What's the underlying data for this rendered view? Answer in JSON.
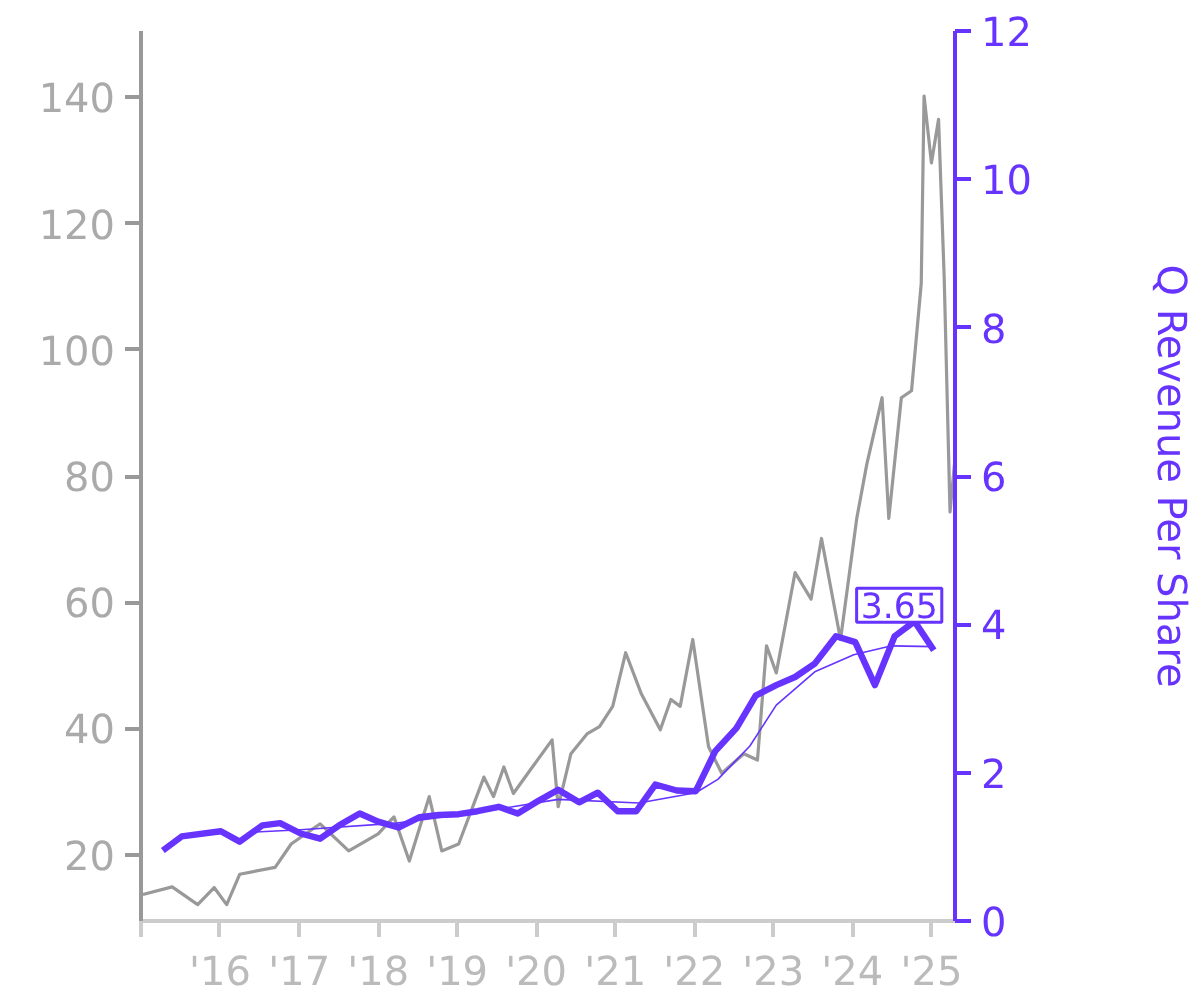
{
  "chart_data": {
    "type": "line",
    "y2label": "Q Revenue Per Share",
    "xlim": [
      "2015-01-01",
      "2025-04-20"
    ],
    "xticks": [
      {
        "value": "2015-01-01",
        "label": null
      },
      {
        "value": "2016-01-01",
        "label": "'16"
      },
      {
        "value": "2017-01-01",
        "label": "'17"
      },
      {
        "value": "2018-01-01",
        "label": "'18"
      },
      {
        "value": "2019-01-01",
        "label": "'19"
      },
      {
        "value": "2020-01-01",
        "label": "'20"
      },
      {
        "value": "2021-01-01",
        "label": "'21"
      },
      {
        "value": "2022-01-01",
        "label": "'22"
      },
      {
        "value": "2023-01-01",
        "label": "'23"
      },
      {
        "value": "2024-01-01",
        "label": "'24"
      },
      {
        "value": "2025-01-01",
        "label": "'25"
      }
    ],
    "ylim": [
      9.5,
      150.5
    ],
    "yticks": [
      20,
      40,
      60,
      80,
      100,
      120,
      140
    ],
    "y2lim": [
      0,
      12
    ],
    "y2ticks": [
      0,
      2,
      4,
      6,
      8,
      10,
      12
    ],
    "grid": false,
    "marker": "none",
    "line_style": "solid",
    "series": [
      {
        "color": "#999999",
        "axis": "y",
        "x": [
          "2015-01-10",
          "2015-05-25",
          "2015-09-20",
          "2015-12-05",
          "2016-02-01",
          "2016-04-01",
          "2016-09-12",
          "2016-11-25",
          "2017-04-08",
          "2017-08-18",
          "2018-01-01",
          "2018-03-15",
          "2018-05-25",
          "2018-08-25",
          "2018-10-22",
          "2019-01-08",
          "2019-05-05",
          "2019-06-18",
          "2019-08-05",
          "2019-09-18",
          "2019-12-15",
          "2020-03-15",
          "2020-04-12",
          "2020-06-10",
          "2020-08-25",
          "2020-10-20",
          "2020-12-20",
          "2021-02-18",
          "2021-04-30",
          "2021-07-28",
          "2021-09-15",
          "2021-10-28",
          "2021-12-25",
          "2022-03-08",
          "2022-05-08",
          "2022-08-18",
          "2022-10-20",
          "2022-12-01",
          "2023-01-15",
          "2023-04-12",
          "2023-06-25",
          "2023-08-12",
          "2023-11-08",
          "2024-01-22",
          "2024-03-08",
          "2024-05-18",
          "2024-06-18",
          "2024-08-15",
          "2024-10-01",
          "2024-11-15",
          "2024-11-28",
          "2025-01-01",
          "2025-02-03",
          "2025-03-01",
          "2025-03-28",
          "2025-04-20"
        ],
        "values": [
          13.7,
          14.9,
          12.1,
          14.8,
          12.1,
          16.9,
          18.0,
          21.7,
          24.9,
          20.6,
          23.3,
          26.0,
          19.0,
          29.2,
          20.6,
          21.7,
          32.3,
          29.2,
          33.9,
          29.7,
          33.9,
          38.2,
          27.6,
          36.0,
          39.2,
          40.3,
          43.5,
          52.0,
          45.6,
          39.8,
          44.6,
          43.5,
          54.1,
          37.1,
          32.9,
          36.0,
          35.0,
          53.1,
          48.8,
          64.7,
          60.5,
          70.1,
          54.1,
          73.3,
          81.8,
          92.4,
          73.3,
          92.4,
          93.5,
          110.5,
          140.2,
          129.6,
          136.5,
          111.5,
          74.3,
          82.8
        ]
      },
      {
        "color": "#6633ff",
        "axis": "y2",
        "x": [
          "2015-04-12",
          "2015-07-08",
          "2016-01-05",
          "2016-04-01",
          "2016-07-15",
          "2016-10-05",
          "2017-01-08",
          "2017-04-08",
          "2017-07-05",
          "2017-10-08",
          "2018-01-01",
          "2018-04-05",
          "2018-07-12",
          "2018-10-08",
          "2019-01-08",
          "2019-04-05",
          "2019-07-12",
          "2019-10-08",
          "2020-01-12",
          "2020-04-12",
          "2020-07-18",
          "2020-10-12",
          "2021-01-12",
          "2021-04-08",
          "2021-07-05",
          "2021-10-12",
          "2022-01-08",
          "2022-04-08",
          "2022-07-15",
          "2022-10-12",
          "2023-01-15",
          "2023-04-12",
          "2023-07-12",
          "2023-10-18",
          "2024-01-15",
          "2024-04-15",
          "2024-07-15",
          "2024-10-15",
          "2025-01-12"
        ],
        "values": [
          0.95,
          1.14,
          1.21,
          1.07,
          1.29,
          1.32,
          1.18,
          1.11,
          1.29,
          1.45,
          1.34,
          1.26,
          1.4,
          1.43,
          1.44,
          1.48,
          1.54,
          1.45,
          1.62,
          1.77,
          1.6,
          1.73,
          1.48,
          1.48,
          1.84,
          1.76,
          1.75,
          2.29,
          2.6,
          3.04,
          3.18,
          3.29,
          3.47,
          3.84,
          3.76,
          3.18,
          3.84,
          4.04,
          3.65
        ],
        "value_labels": [
          null,
          null,
          null,
          null,
          null,
          null,
          null,
          null,
          null,
          null,
          null,
          null,
          null,
          null,
          null,
          null,
          null,
          null,
          null,
          null,
          null,
          null,
          null,
          null,
          null,
          null,
          null,
          null,
          null,
          null,
          null,
          null,
          null,
          null,
          null,
          null,
          null,
          null,
          "3.65"
        ]
      },
      {
        "color": "#6633ff",
        "axis": "y2",
        "x": [
          "2016-06-15",
          "2017-01-08",
          "2018-03-28",
          "2019-04-20",
          "2020-04-12",
          "2021-04-20",
          "2022-01-08",
          "2022-04-20",
          "2022-09-15",
          "2023-01-15",
          "2023-07-12",
          "2024-01-08",
          "2024-07-01",
          "2025-01-12"
        ],
        "values": [
          1.2,
          1.23,
          1.32,
          1.47,
          1.64,
          1.59,
          1.73,
          1.91,
          2.36,
          2.91,
          3.36,
          3.59,
          3.71,
          3.7
        ]
      }
    ]
  }
}
